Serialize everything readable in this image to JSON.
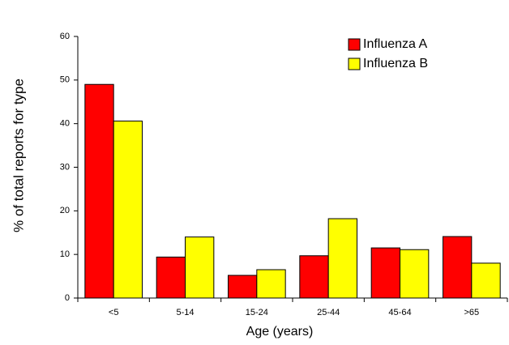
{
  "chart_data": {
    "type": "bar",
    "x_label": "Age (years)",
    "y_label": "% of total reports for type",
    "categories": [
      "<5",
      "5-14",
      "15-24",
      "25-44",
      "45-64",
      ">65"
    ],
    "series": [
      {
        "name": "Influenza A",
        "color": "#ff0000",
        "values": [
          49,
          9.4,
          5.2,
          9.7,
          11.5,
          14.1
        ]
      },
      {
        "name": "Influenza B",
        "color": "#ffff00",
        "values": [
          40.6,
          14,
          6.5,
          18.2,
          11.1,
          8
        ]
      }
    ],
    "ylim": [
      0,
      60
    ],
    "yticks": [
      0,
      10,
      20,
      30,
      40,
      50,
      60
    ],
    "grid": false,
    "legend": "top-right"
  }
}
